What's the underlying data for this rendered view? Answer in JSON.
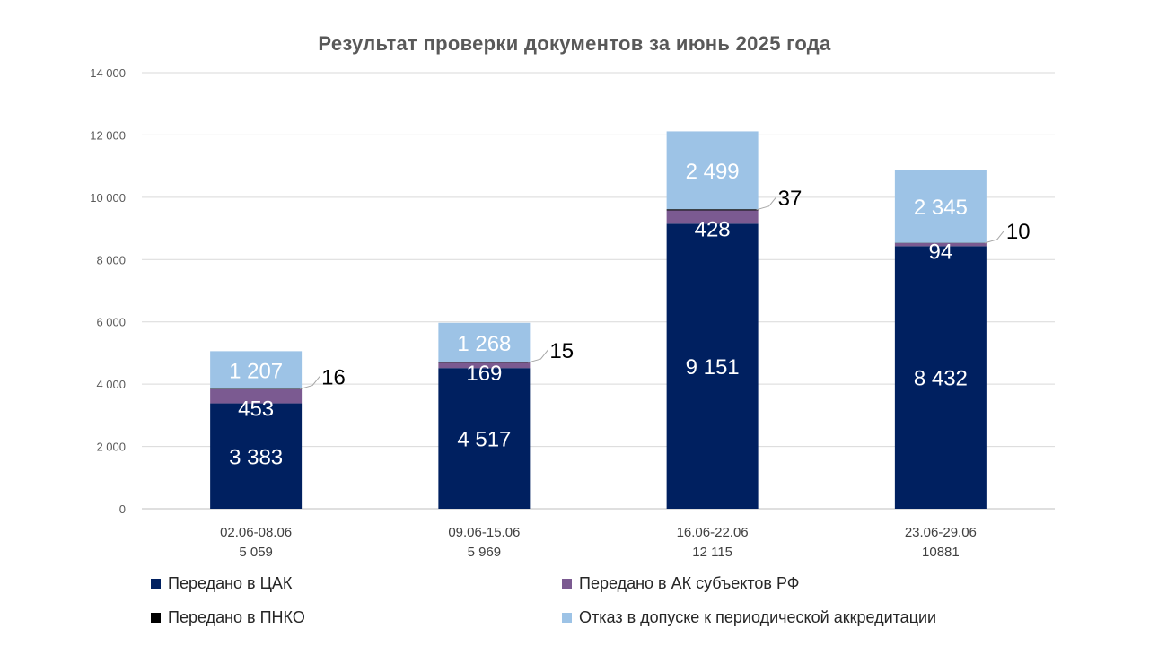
{
  "chart_data": {
    "type": "bar",
    "stacked": true,
    "title": "Результат проверки документов за июнь 2025 года",
    "xlabel": "",
    "ylabel": "",
    "ylim": [
      0,
      14000
    ],
    "yticks": [
      0,
      2000,
      4000,
      6000,
      8000,
      10000,
      12000,
      14000
    ],
    "ytick_labels": [
      "0",
      "2 000",
      "4 000",
      "6 000",
      "8 000",
      "10 000",
      "12 000",
      "14 000"
    ],
    "grid": true,
    "legend_position": "bottom",
    "categories": [
      "02.06-08.06",
      "09.06-15.06",
      "16.06-22.06",
      "23.06-29.06"
    ],
    "category_totals": [
      "5 059",
      "5 969",
      "12 115",
      "10881"
    ],
    "series": [
      {
        "name": "Передано в ЦАК",
        "color": "#002060",
        "values": [
          3383,
          4517,
          9151,
          8432
        ],
        "labels": [
          "3 383",
          "4 517",
          "9 151",
          "8 432"
        ]
      },
      {
        "name": "Передано в АК субъектов РФ",
        "color": "#7B5A91",
        "values": [
          453,
          169,
          428,
          94
        ],
        "labels": [
          "453",
          "169",
          "428",
          "94"
        ]
      },
      {
        "name": "Передано в ПНКО",
        "color": "#000000",
        "values": [
          16,
          15,
          37,
          10
        ],
        "labels": [
          "16",
          "15",
          "37",
          "10"
        ]
      },
      {
        "name": "Отказ в допуске к периодической аккредитации",
        "color": "#9DC3E6",
        "values": [
          1207,
          1268,
          2499,
          2345
        ],
        "labels": [
          "1 207",
          "1 268",
          "2 499",
          "2 345"
        ]
      }
    ]
  }
}
